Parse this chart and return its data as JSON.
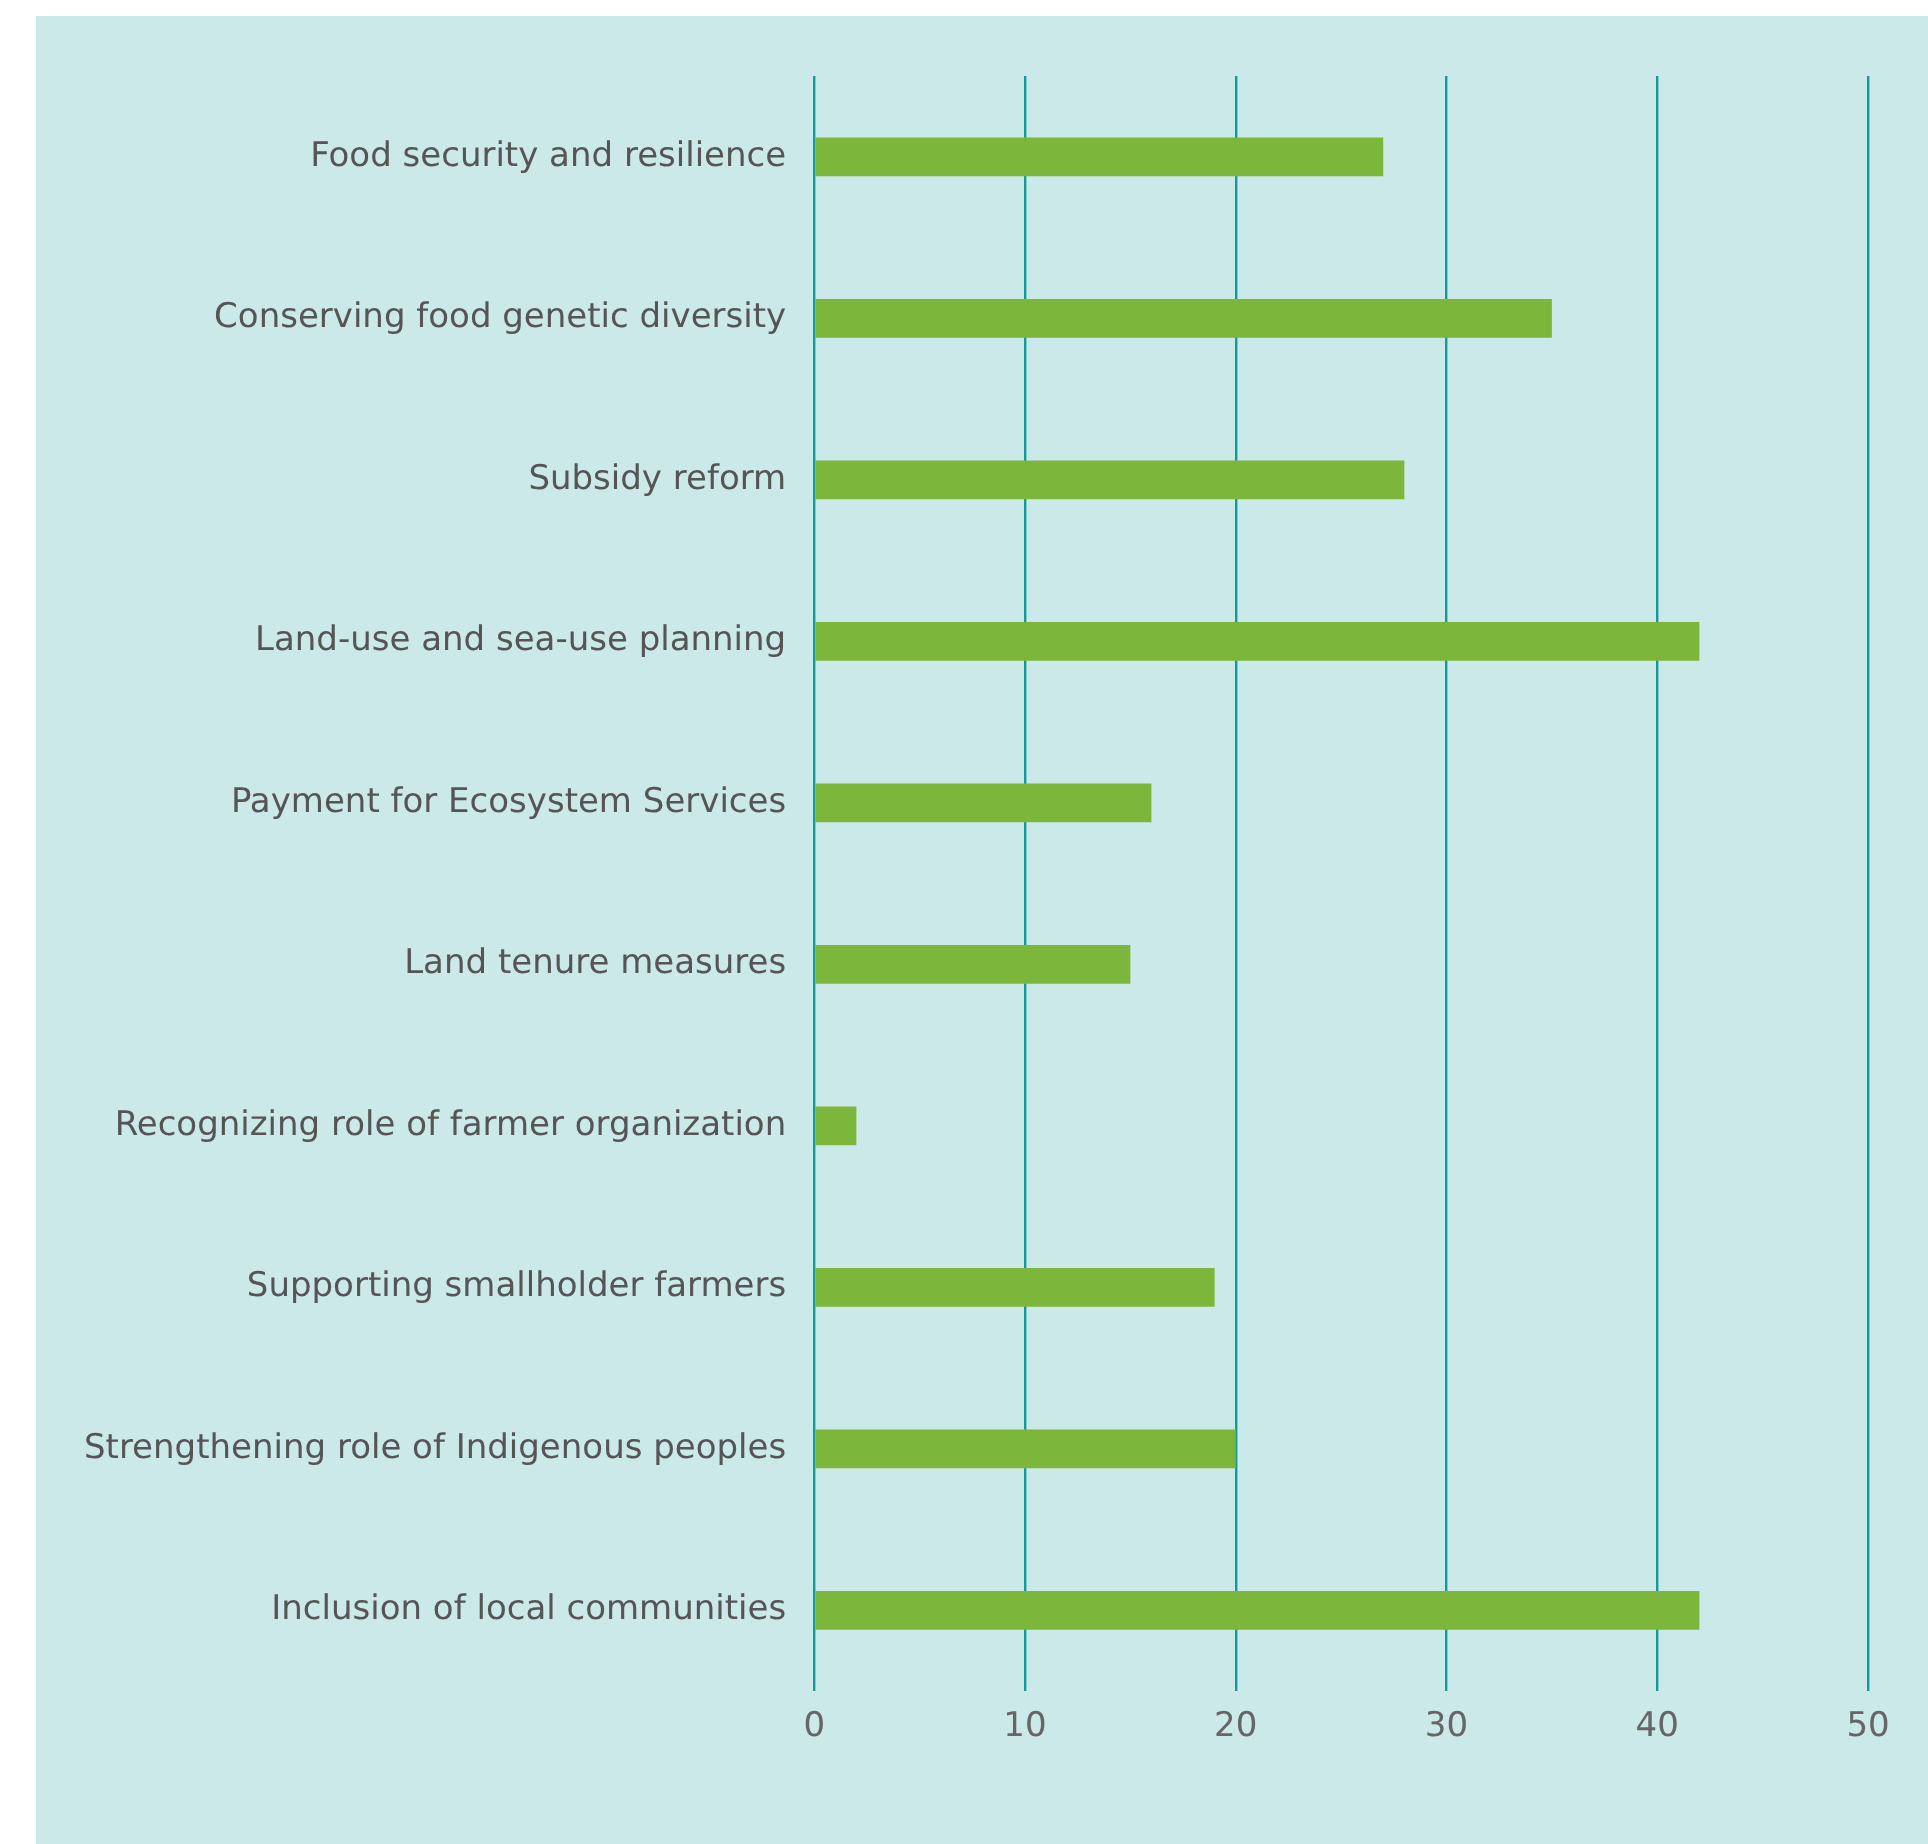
{
  "chart_data": {
    "type": "bar",
    "orientation": "horizontal",
    "categories": [
      "Food security and resilience",
      "Conserving food genetic diversity",
      "Subsidy reform",
      "Land-use and sea-use planning",
      "Payment for Ecosystem Services",
      "Land tenure measures",
      "Recognizing role of farmer organization",
      "Supporting smallholder farmers",
      "Strengthening role of Indigenous peoples",
      "Inclusion of local communities"
    ],
    "values": [
      27,
      35,
      28,
      42,
      16,
      15,
      2,
      19,
      20,
      42
    ],
    "color": "#7cb63a",
    "xlim": [
      0,
      50
    ],
    "xticks": [
      0,
      10,
      20,
      30,
      40,
      50
    ],
    "grid": "x",
    "legend": false
  }
}
